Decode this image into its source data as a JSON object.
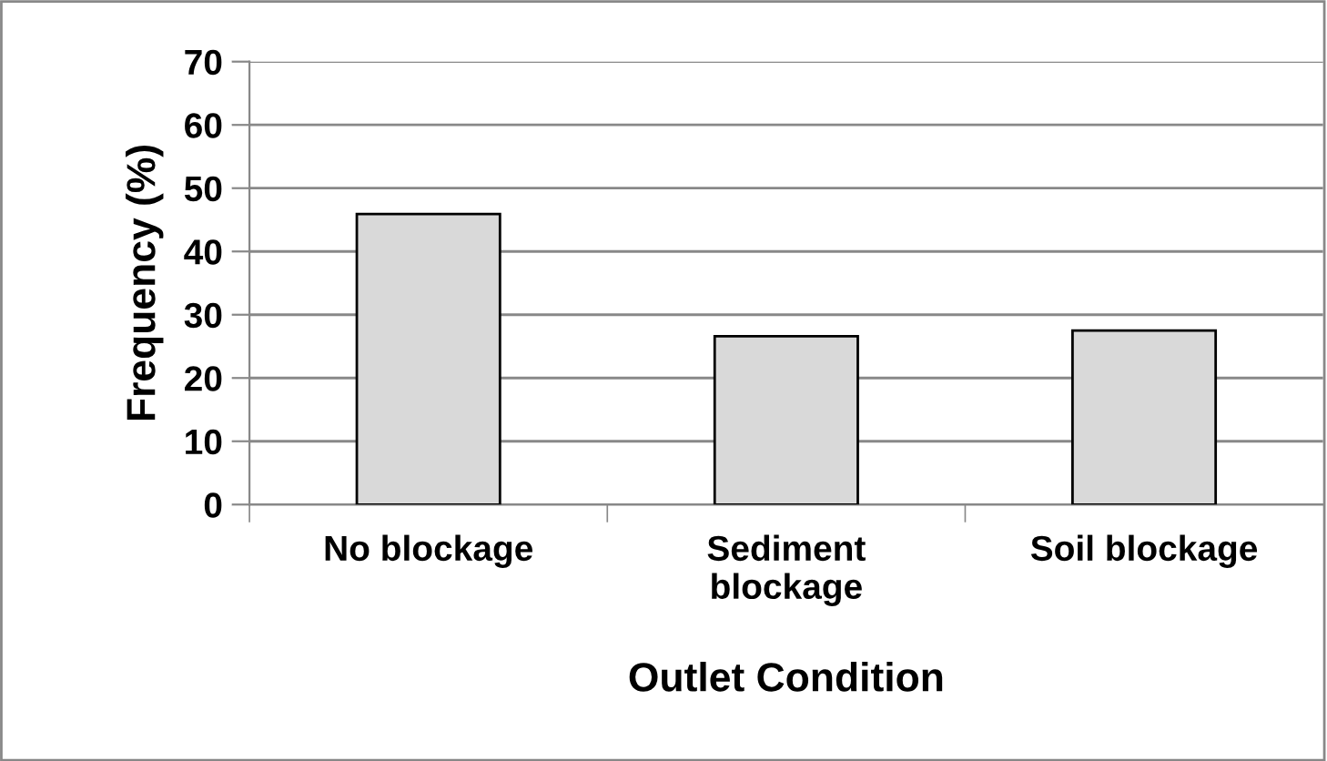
{
  "chart_data": {
    "type": "bar",
    "xlabel": "Outlet Condition",
    "ylabel": "Frequency (%)",
    "categories": [
      "No blockage",
      "Sediment blockage",
      "Soil blockage"
    ],
    "values": [
      45.9,
      26.6,
      27.5
    ],
    "color": "#d9d9d9",
    "ylim": [
      0,
      70
    ],
    "yticks": [
      0,
      10,
      20,
      30,
      40,
      50,
      60,
      70
    ],
    "grid": "y",
    "legend": false
  }
}
